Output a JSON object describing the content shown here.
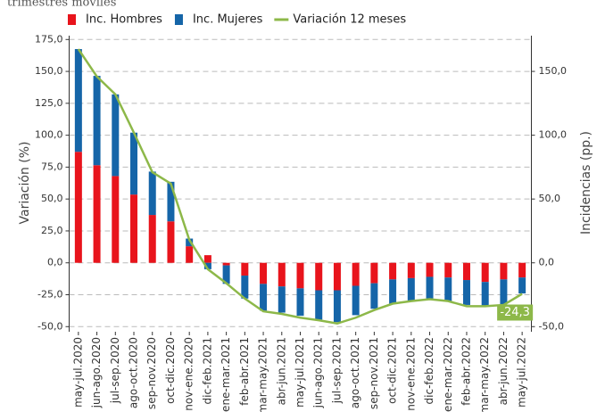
{
  "chart_data": {
    "type": "bar",
    "title": "trimestres móviles",
    "categories": [
      "may-jul.2020",
      "jun-ago.2020",
      "jul-sep.2020",
      "ago-oct.2020",
      "sep-nov.2020",
      "oct-dic.2020",
      "nov-ene.2020",
      "dic-feb.2021",
      "ene-mar.2021",
      "feb-abr.2021",
      "mar-may.2021",
      "abr-jun.2021",
      "may-jul.2021",
      "jun-ago.2021",
      "jul-sep.2021",
      "ago-oct.2021",
      "sep-nov.2021",
      "oct-dic.2021",
      "nov-ene.2021",
      "dic-feb.2022",
      "ene-mar.2022",
      "feb-abr.2022",
      "mar-may.2022",
      "abr-jun.2022",
      "may-jul.2022"
    ],
    "series": [
      {
        "name": "Inc. Hombres",
        "color": "#e8141c",
        "type": "bar",
        "axis": "y2",
        "values": [
          87,
          76.5,
          68,
          53.5,
          37.5,
          32.5,
          13,
          6,
          -2,
          -10,
          -16.5,
          -18.5,
          -20,
          -21.5,
          -21.5,
          -18,
          -16,
          -13,
          -12,
          -11,
          -11.5,
          -13.5,
          -15,
          -13,
          -11.5
        ]
      },
      {
        "name": "Inc. Mujeres",
        "color": "#1565a8",
        "type": "bar",
        "axis": "y2",
        "values": [
          80.5,
          70,
          64,
          48.5,
          34,
          31,
          6,
          -5,
          -14.5,
          -18,
          -21,
          -20.5,
          -21.5,
          -23,
          -25,
          -23,
          -20,
          -19,
          -18,
          -17,
          -18.5,
          -19.5,
          -19,
          -19.5,
          -12.5
        ]
      },
      {
        "name": "Variación 12 meses",
        "color": "#8db849",
        "type": "line",
        "values": [
          167.5,
          146,
          132,
          102,
          71,
          62,
          18,
          -5,
          -16,
          -28,
          -38,
          -40,
          -43,
          -45,
          -47.5,
          -43,
          -37,
          -32,
          -30,
          -28.5,
          -30,
          -34,
          -34,
          -33,
          -24.3
        ],
        "value_labels": [
          null,
          null,
          null,
          null,
          null,
          null,
          null,
          null,
          null,
          null,
          null,
          null,
          null,
          null,
          null,
          null,
          null,
          null,
          null,
          null,
          null,
          null,
          null,
          null,
          "-24,3"
        ]
      }
    ],
    "ylabel": "Variación (%)",
    "y2label": "Incidencias (pp.)",
    "ylim": [
      -54,
      178
    ],
    "yticks": [
      {
        "value": 175,
        "label": "175,0"
      },
      {
        "value": 150,
        "label": "150,0"
      },
      {
        "value": 125,
        "label": "125,0"
      },
      {
        "value": 100,
        "label": "100,0"
      },
      {
        "value": 75,
        "label": "75,0"
      },
      {
        "value": 50,
        "label": "50,0"
      },
      {
        "value": 25,
        "label": "25,0"
      },
      {
        "value": 0,
        "label": "0,0"
      },
      {
        "value": -25,
        "label": "-25,0"
      },
      {
        "value": -50,
        "label": "-50,0"
      }
    ],
    "y2lim": [
      -54,
      178
    ],
    "y2ticks": [
      {
        "value": 150,
        "label": "150,0"
      },
      {
        "value": 100,
        "label": "100,0"
      },
      {
        "value": 50,
        "label": "50,0"
      },
      {
        "value": 0,
        "label": "0,0"
      },
      {
        "value": -50,
        "label": "-50,0"
      }
    ],
    "grid": true,
    "legend": "top"
  }
}
